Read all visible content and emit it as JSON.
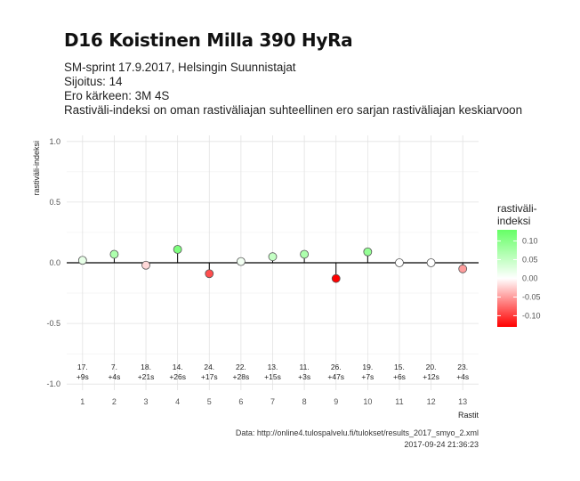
{
  "header": {
    "title": "D16 Koistinen Milla 390 HyRa",
    "subtitle_lines": [
      "SM-sprint 17.9.2017, Helsingin Suunnistajat",
      "Sijoitus: 14",
      "Ero kärkeen: 3M 4S",
      "Rastiväli-indeksi on oman rastiväliajan suhteellinen ero sarjan rastiväliajan keskiarvoon"
    ]
  },
  "caption": {
    "source": "Data: http://online4.tulospalvelu.fi/tulokset/results_2017_smyo_2.xml",
    "timestamp": "2017-09-24 21:36:23"
  },
  "chart_data": {
    "type": "scatter",
    "xlabel": "Rastit",
    "ylabel": "rastiväli-indeksi",
    "ylim": [
      -1.05,
      1.05
    ],
    "yticks": [
      1.0,
      0.5,
      0.0,
      -0.5,
      -1.0
    ],
    "ytick_labels": [
      "1.0",
      "0.5",
      "0.0",
      "-0.5",
      "-1.0"
    ],
    "x": [
      1,
      2,
      3,
      4,
      5,
      6,
      7,
      8,
      9,
      10,
      11,
      12,
      13
    ],
    "values": [
      0.02,
      0.07,
      -0.02,
      0.11,
      -0.09,
      0.01,
      0.05,
      0.07,
      -0.13,
      0.09,
      0.0,
      0.0,
      -0.05
    ],
    "rank_labels": [
      "17.",
      "7.",
      "18.",
      "14.",
      "24.",
      "22.",
      "13.",
      "11.",
      "26.",
      "19.",
      "15.",
      "20.",
      "23."
    ],
    "diff_labels": [
      "+9s",
      "+4s",
      "+21s",
      "+26s",
      "+17s",
      "+28s",
      "+15s",
      "+3s",
      "+47s",
      "+7s",
      "+6s",
      "+12s",
      "+4s"
    ],
    "grid": true,
    "legend": {
      "title_lines": [
        "rastiväli-",
        "indeksi"
      ],
      "position": "right",
      "ticks": [
        0.1,
        0.05,
        0.0,
        -0.05,
        -0.1
      ],
      "tick_labels": [
        "0.10",
        "0.05",
        "0.00",
        "-0.05",
        "-0.10"
      ],
      "range": [
        -0.13,
        0.13
      ],
      "colors": {
        "high": "#66ff66",
        "mid": "#ffffff",
        "low": "#ff0000"
      }
    }
  }
}
